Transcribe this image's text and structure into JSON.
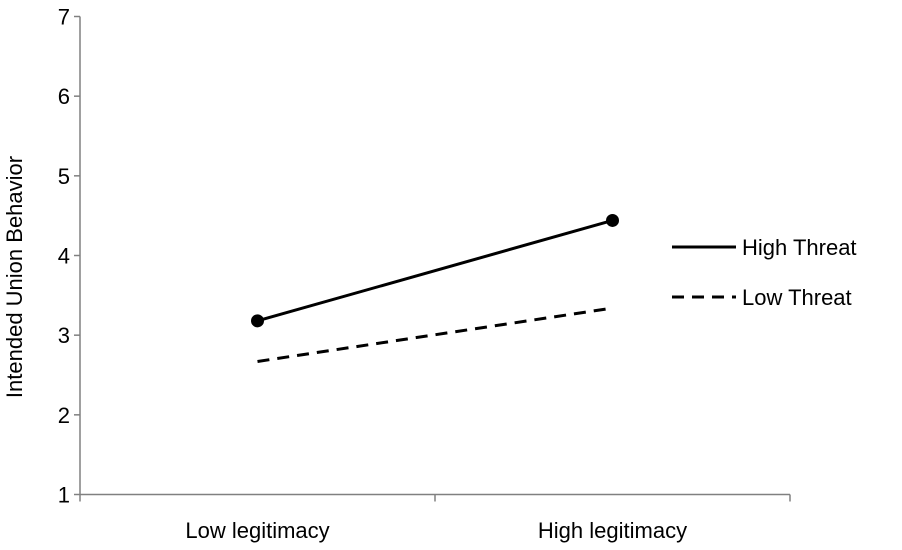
{
  "chart_data": {
    "type": "line",
    "title": "",
    "xlabel": "",
    "ylabel": "Intended Union Behavior",
    "categories": [
      "Low legitimacy",
      "High legitimacy"
    ],
    "ylim": [
      1,
      7
    ],
    "yticks": [
      1,
      2,
      3,
      4,
      5,
      6,
      7
    ],
    "grid": false,
    "legend": "right",
    "series": [
      {
        "name": "High Threat",
        "values": [
          3.18,
          4.44
        ],
        "line_style": "solid",
        "markers": true,
        "color": "#000000"
      },
      {
        "name": "Low Threat",
        "values": [
          2.67,
          3.34
        ],
        "line_style": "dashed",
        "markers": false,
        "color": "#000000"
      }
    ]
  }
}
